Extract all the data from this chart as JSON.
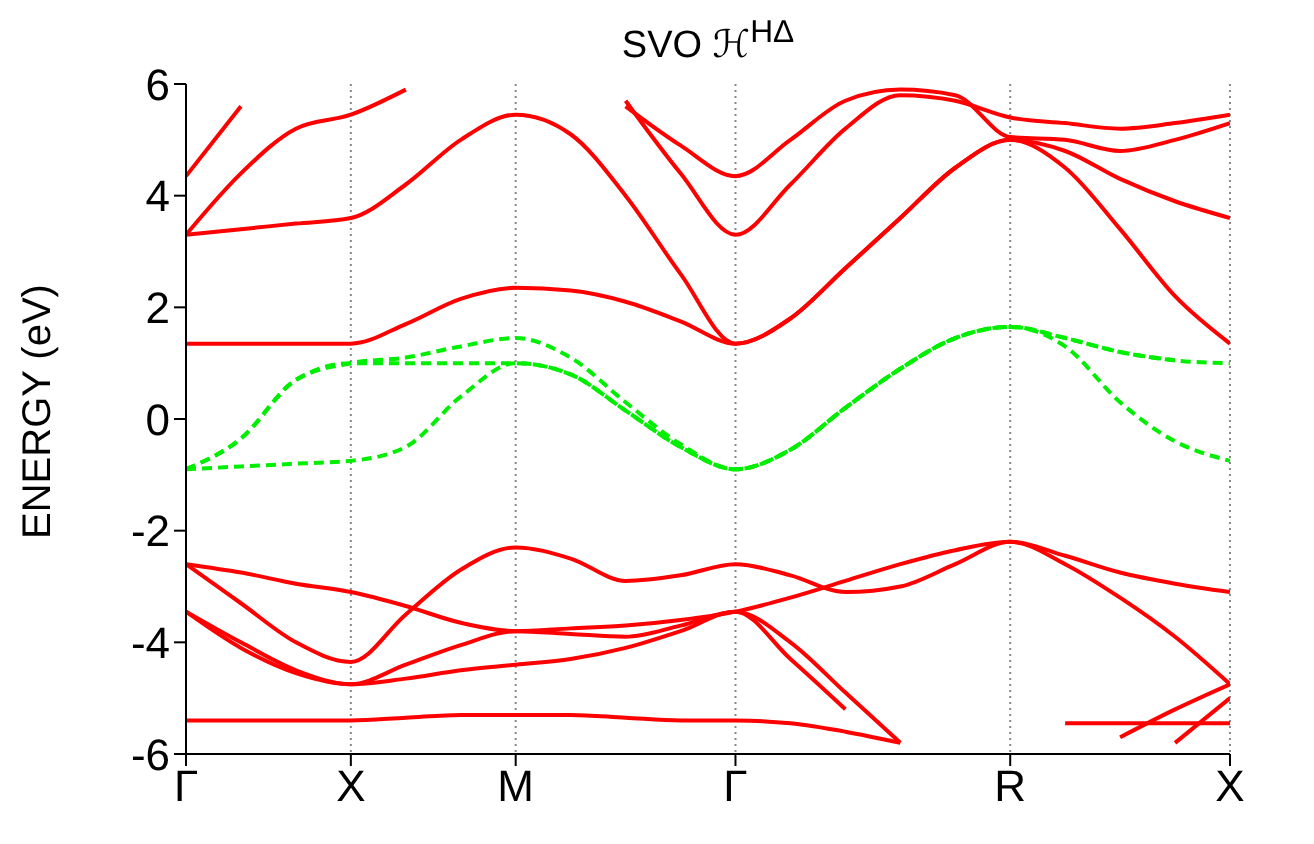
{
  "chart_data": {
    "type": "line",
    "title": "SVO ℋ$^{HΔ}$",
    "ylabel": "ENERGY (eV)",
    "categories": [
      "Γ",
      null,
      null,
      "X",
      null,
      null,
      "M",
      null,
      null,
      null,
      "Γ",
      null,
      null,
      null,
      null,
      "R",
      null,
      null,
      null,
      "X"
    ],
    "ylim": [
      -6,
      6
    ],
    "yticks": [
      -6,
      -4,
      -2,
      0,
      2,
      4,
      6
    ],
    "grid": "x",
    "marker": "none",
    "series": [
      {
        "color": "#ff0000",
        "values": [
          1.35,
          1.35,
          1.35,
          1.35,
          1.7,
          2.15,
          2.35,
          2.3,
          2.1,
          1.75,
          1.35,
          1.8,
          2.7,
          3.6,
          4.5,
          5.0,
          4.5,
          3.4,
          2.2,
          1.35
        ]
      },
      {
        "color": "#ff0000",
        "values": [
          3.3,
          3.4,
          3.5,
          3.6,
          4.2,
          5.0,
          5.45,
          5.1,
          4.0,
          2.6,
          1.35,
          1.8,
          2.7,
          3.6,
          4.5,
          5.0,
          4.8,
          4.3,
          3.9,
          3.6
        ]
      },
      {
        "color": "#ff0000",
        "values": [
          3.3,
          4.4,
          5.2,
          5.45,
          5.9,
          null,
          null,
          null,
          5.7,
          4.4,
          3.3,
          4.2,
          5.2,
          5.8,
          5.7,
          5.4,
          5.3,
          5.2,
          5.3,
          5.45
        ]
      },
      {
        "color": "#ff0000",
        "values": [
          4.35,
          5.6,
          null,
          null,
          null,
          null,
          null,
          null,
          5.6,
          4.9,
          4.35,
          5.0,
          5.7,
          5.9,
          5.8,
          5.05,
          5.0,
          4.8,
          5.0,
          5.3
        ]
      },
      {
        "color": "#00ee00",
        "line_style": "dashed",
        "values": [
          -0.9,
          -0.85,
          -0.8,
          -0.75,
          -0.5,
          0.4,
          1.0,
          0.8,
          0.15,
          -0.5,
          -0.9,
          -0.55,
          0.2,
          0.9,
          1.45,
          1.65,
          1.3,
          0.3,
          -0.4,
          -0.75
        ]
      },
      {
        "color": "#00ee00",
        "line_style": "dashed",
        "values": [
          -0.9,
          -0.35,
          0.7,
          1.0,
          1.0,
          1.0,
          1.0,
          0.8,
          0.15,
          -0.5,
          -0.9,
          -0.55,
          0.2,
          0.9,
          1.45,
          1.65,
          1.45,
          1.2,
          1.05,
          1.0
        ]
      },
      {
        "color": "#00ee00",
        "line_style": "dashed",
        "values": [
          -0.9,
          -0.35,
          0.7,
          1.0,
          1.1,
          1.3,
          1.45,
          1.1,
          0.3,
          -0.45,
          -0.9,
          -0.55,
          0.2,
          0.9,
          1.45,
          1.65,
          1.45,
          1.2,
          1.05,
          null
        ]
      },
      {
        "color": "#ff0000",
        "values": [
          -2.6,
          -2.75,
          -2.95,
          -3.1,
          -3.35,
          -3.65,
          -3.8,
          -3.75,
          -3.7,
          -3.6,
          -3.45,
          -3.2,
          -2.9,
          -2.6,
          -2.35,
          -2.2,
          -2.45,
          -2.75,
          -2.95,
          -3.1
        ]
      },
      {
        "color": "#ff0000",
        "values": [
          -2.6,
          -3.3,
          -4.0,
          -4.35,
          -3.5,
          -2.7,
          -2.3,
          -2.5,
          -2.9,
          -2.8,
          -2.6,
          -2.8,
          -3.1,
          -3.0,
          -2.6,
          -2.2,
          -2.6,
          -3.2,
          -3.9,
          -4.75
        ]
      },
      {
        "color": "#ff0000",
        "values": [
          -3.45,
          -4.0,
          -4.5,
          -4.75,
          -4.4,
          -4.05,
          -3.8,
          -3.85,
          -3.9,
          -3.7,
          -3.45,
          -4.0,
          -4.9,
          -5.8,
          null,
          null,
          null,
          -5.7,
          -5.2,
          -4.75
        ]
      },
      {
        "color": "#ff0000",
        "values": [
          -3.45,
          -4.1,
          -4.55,
          -4.75,
          -4.65,
          -4.5,
          -4.4,
          -4.3,
          -4.1,
          -3.8,
          -3.45,
          -4.3,
          -5.2,
          null,
          null,
          null,
          null,
          null,
          -5.8,
          -5.0
        ]
      },
      {
        "color": "#ff0000",
        "values": [
          -5.4,
          -5.4,
          -5.4,
          -5.4,
          -5.35,
          -5.3,
          -5.3,
          -5.3,
          -5.35,
          -5.4,
          -5.4,
          -5.45,
          -5.6,
          -5.8,
          null,
          null,
          -5.45,
          -5.45,
          -5.45,
          -5.45
        ]
      }
    ]
  }
}
